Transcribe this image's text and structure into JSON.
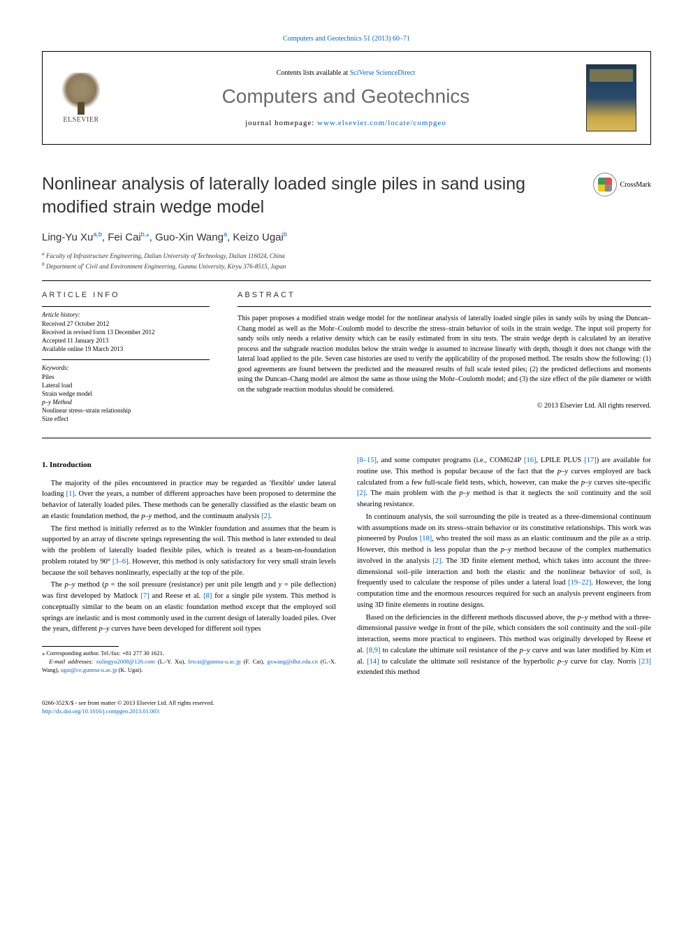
{
  "top_link": {
    "text": "Computers and Geotechnics 51 (2013) 60–71",
    "href": "#"
  },
  "header": {
    "elsevier_label": "ELSEVIER",
    "contents_prefix": "Contents lists available at ",
    "contents_link": "SciVerse ScienceDirect",
    "journal_name": "Computers and Geotechnics",
    "homepage_prefix": "journal homepage: ",
    "homepage_link": "www.elsevier.com/locate/compgeo"
  },
  "crossmark_label": "CrossMark",
  "title": "Nonlinear analysis of laterally loaded single piles in sand using modified strain wedge model",
  "authors_html": {
    "a1_name": "Ling-Yu Xu",
    "a1_sup": "a,b",
    "a2_name": "Fei Cai",
    "a2_sup": "b,",
    "a2_mark": "⁎",
    "a3_name": "Guo-Xin Wang",
    "a3_sup": "a",
    "a4_name": "Keizo Ugai",
    "a4_sup": "b"
  },
  "affiliations": {
    "a": "Faculty of Infrastructure Engineering, Dalian University of Technology, Dalian 116024, China",
    "b": "Department of' Civil and Environment Engineering, Gunma University, Kiryu 376-8515, Japan"
  },
  "article_info": {
    "heading": "ARTICLE INFO",
    "history_label": "Article history:",
    "received": "Received 27 October 2012",
    "revised": "Received in revised form 13 December 2012",
    "accepted": "Accepted 11 January 2013",
    "online": "Available online 19 March 2013",
    "keywords_label": "Keywords:",
    "keywords": [
      "Piles",
      "Lateral load",
      "Strain wedge model",
      "p–y Method",
      "Nonlinear stress–strain relationship",
      "Size effect"
    ]
  },
  "abstract": {
    "heading": "ABSTRACT",
    "text": "This paper proposes a modified strain wedge model for the nonlinear analysis of laterally loaded single piles in sandy soils by using the Duncan–Chang model as well as the Mohr–Coulomb model to describe the stress–strain behavior of soils in the strain wedge. The input soil property for sandy soils only needs a relative density which can be easily estimated from in situ tests. The strain wedge depth is calculated by an iterative process and the subgrade reaction modulus below the strain wedge is assumed to increase linearly with depth, though it does not change with the lateral load applied to the pile. Seven case histories are used to verify the applicability of the proposed method. The results show the following: (1) good agreements are found between the predicted and the measured results of full scale tested piles; (2) the predicted deflections and moments using the Duncan–Chang model are almost the same as those using the Mohr–Coulomb model; and (3) the size effect of the pile diameter or width on the subgrade reaction modulus should be considered.",
    "copyright": "© 2013 Elsevier Ltd. All rights reserved."
  },
  "body": {
    "section1_heading": "1. Introduction",
    "p1a": "The majority of the piles encountered in practice may be regarded as 'flexible' under lateral loading ",
    "p1b": ". Over the years, a number of different approaches have been proposed to determine the behavior of laterally loaded piles. These methods can be generally classified as the elastic beam on an elastic foundation method, the ",
    "p1c": " method, and the continuum analysis ",
    "p2a": "The first method is initially referred as to the Winkler foundation and assumes that the beam is supported by an array of discrete springs representing the soil. This method is later extended to deal with the problem of laterally loaded flexible piles, which is treated as a beam-on-foundation problem rotated by 90° ",
    "p2b": ". However, this method is only satisfactory for very small strain levels because the soil behaves nonlinearly, especially at the top of the pile.",
    "p3a": "The ",
    "p3b": " method (",
    "p3c": " = the soil pressure (resistance) per unit pile length and ",
    "p3d": " = pile deflection) was first developed by Matlock ",
    "p3e": " and Reese et al. ",
    "p3f": " for a single pile system. This method is conceptually similar to the beam on an elastic foundation method except that the employed soil springs are inelastic and is most commonly used in the current design of laterally loaded piles. Over the years, different ",
    "p3g": " curves have been developed for different soil types ",
    "p4a": ", and some computer programs (i.e., COM624P ",
    "p4b": ", LPILE PLUS ",
    "p4c": ") are available for routine use. This method is popular because of the fact that the ",
    "p4d": " curves employed are back calculated from a few full-scale field tests, which, however, can make the ",
    "p4e": " curves site-specific ",
    "p4f": ". The main problem with the ",
    "p4g": " method is that it neglects the soil continuity and the soil shearing resistance.",
    "p5a": "In continuum analysis, the soil surrounding the pile is treated as a three-dimensional continuum with assumptions made on its stress–strain behavior or its constitutive relationships. This work was pioneered by Poulos ",
    "p5b": ", who treated the soil mass as an elastic continuum and the pile as a strip. However, this method is less popular than the ",
    "p5c": " method because of the complex mathematics involved in the analysis ",
    "p5d": ". The 3D finite element method, which takes into account the three-dimensional soil–pile interaction and both the elastic and the nonlinear behavior of soil, is frequently used to calculate the response of piles under a lateral load ",
    "p5e": ". However, the long computation time and the enormous resources required for such an analysis prevent engineers from using 3D finite elements in routine designs.",
    "p6a": "Based on the deficiencies in the different methods discussed above, the ",
    "p6b": " method with a three-dimensional passive wedge in front of the pile, which considers the soil continuity and the soil–pile interaction, seems more practical to engineers. This method was originally developed by Reese et al. ",
    "p6c": " to calculate the ultimate soil resistance of the ",
    "p6d": " curve and was later modified by Kim et al. ",
    "p6e": " to calculate the ultimate soil resistance of the hyperbolic ",
    "p6f": " curve for clay. Norris ",
    "p6g": " extended this method",
    "py": "p–y",
    "p_var": "p",
    "y_var": "y"
  },
  "refs": {
    "r1": "[1]",
    "r2": "[2]",
    "r3_6": "[3–6]",
    "r7": "[7]",
    "r8": "[8]",
    "r8_15": "[8–15]",
    "r16": "[16]",
    "r17": "[17]",
    "r18": "[18]",
    "r19_22": "[19–22]",
    "r8_9": "[8,9]",
    "r14": "[14]",
    "r23": "[23]"
  },
  "footnotes": {
    "corr": "⁎ Corresponding author. Tel./fax: +81 277 30 1621.",
    "email_label": "E-mail addresses: ",
    "e1": "xulingyu2008@126.com",
    "n1": " (L.-Y. Xu), ",
    "e2": "feicai@gunma-u.ac.jp",
    "n2": " (F. Cai), ",
    "e3": "gxwang@dlut.edu.cn",
    "n3": " (G.-X. Wang), ",
    "e4": "ugai@ce.gunma-u.ac.jp",
    "n4": " (K. Ugai)."
  },
  "footer": {
    "line1": "0266-352X/$ - see front matter © 2013 Elsevier Ltd. All rights reserved.",
    "doi": "http://dx.doi.org/10.1016/j.compgeo.2013.01.003"
  },
  "colors": {
    "link": "#0066cc",
    "heading_gray": "#6a6a6a"
  }
}
